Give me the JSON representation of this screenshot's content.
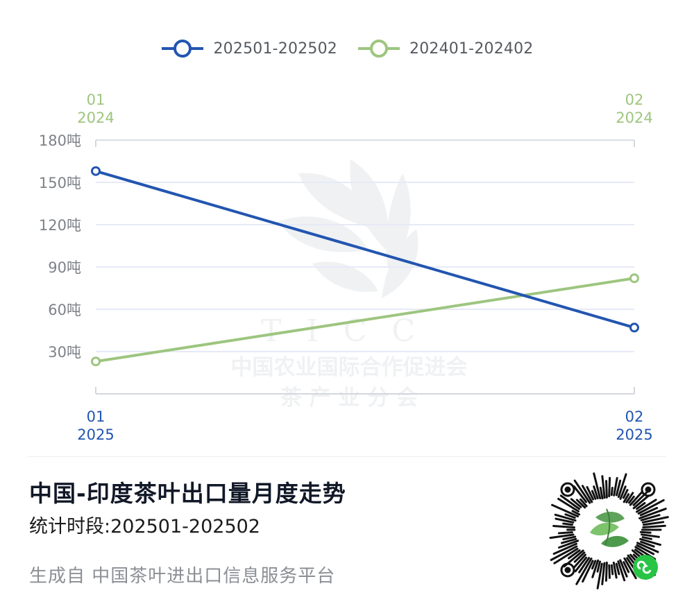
{
  "chart_data": {
    "type": "line",
    "title": "中国-印度茶叶出口量月度走势",
    "subtitle": "统计时段:202501-202502",
    "ylim": [
      0,
      180
    ],
    "y_ticks": [
      "180吨",
      "150吨",
      "120吨",
      "90吨",
      "60吨",
      "30吨"
    ],
    "y_tick_values": [
      180,
      150,
      120,
      90,
      60,
      30
    ],
    "grid": true,
    "legend_position": "top-center",
    "series": [
      {
        "name": "202501-202502",
        "color": "#2255b0",
        "x_labels": [
          [
            "01",
            "2025"
          ],
          [
            "02",
            "2025"
          ]
        ],
        "values": [
          158,
          47
        ]
      },
      {
        "name": "202401-202402",
        "color": "#9dc57f",
        "x_labels": [
          [
            "01",
            "2024"
          ],
          [
            "02",
            "2024"
          ]
        ],
        "values": [
          23,
          82
        ]
      }
    ]
  },
  "watermark": {
    "logo": "tea-leaf-emblem",
    "line1": "TICC",
    "line2": "中国农业国际合作促进会",
    "line3": "茶 产 业 分 会"
  },
  "footer": {
    "title": "中国-印度茶叶出口量月度走势",
    "period": "统计时段:202501-202502",
    "source": "生成自 中国茶叶进出口信息服务平台"
  },
  "qr": {
    "icon": "mini-program-qr-code"
  }
}
